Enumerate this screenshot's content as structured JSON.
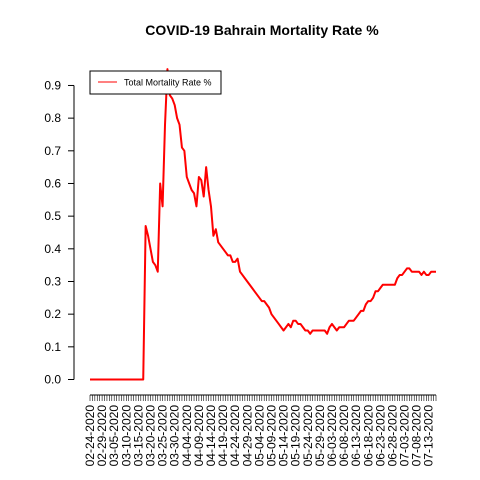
{
  "chart_data": {
    "type": "line",
    "title": "COVID-19 Bahrain Mortality Rate %",
    "xlabel": "",
    "ylabel": "",
    "ylim": [
      0,
      0.95
    ],
    "y_ticks": [
      "0.0",
      "0.1",
      "0.2",
      "0.3",
      "0.4",
      "0.5",
      "0.6",
      "0.7",
      "0.8",
      "0.9"
    ],
    "x_tick_labels": [
      "02-24-2020",
      "02-29-2020",
      "03-05-2020",
      "03-10-2020",
      "03-15-2020",
      "03-20-2020",
      "03-25-2020",
      "03-30-2020",
      "04-04-2020",
      "04-09-2020",
      "04-14-2020",
      "04-19-2020",
      "04-24-2020",
      "04-29-2020",
      "05-04-2020",
      "05-09-2020",
      "05-14-2020",
      "05-19-2020",
      "05-24-2020",
      "05-29-2020",
      "06-03-2020",
      "06-08-2020",
      "06-13-2020",
      "06-18-2020",
      "06-23-2020",
      "06-28-2020",
      "07-03-2020",
      "07-08-2020",
      "07-13-2020"
    ],
    "grid": false,
    "legend_position": "top-left",
    "series": [
      {
        "name": "Total Mortality Rate %",
        "color": "#ff0000",
        "start_date": "02-24-2020",
        "values": [
          0,
          0,
          0,
          0,
          0,
          0,
          0,
          0,
          0,
          0,
          0,
          0,
          0,
          0,
          0,
          0,
          0,
          0,
          0,
          0,
          0,
          0,
          0,
          0.47,
          0.44,
          0.4,
          0.36,
          0.35,
          0.33,
          0.6,
          0.53,
          0.78,
          0.95,
          0.87,
          0.86,
          0.84,
          0.8,
          0.78,
          0.71,
          0.7,
          0.62,
          0.6,
          0.58,
          0.57,
          0.53,
          0.62,
          0.61,
          0.56,
          0.65,
          0.58,
          0.53,
          0.44,
          0.46,
          0.42,
          0.41,
          0.4,
          0.39,
          0.38,
          0.38,
          0.36,
          0.36,
          0.37,
          0.33,
          0.32,
          0.31,
          0.3,
          0.29,
          0.28,
          0.27,
          0.26,
          0.25,
          0.24,
          0.24,
          0.23,
          0.22,
          0.2,
          0.19,
          0.18,
          0.17,
          0.16,
          0.15,
          0.16,
          0.17,
          0.16,
          0.18,
          0.18,
          0.17,
          0.17,
          0.16,
          0.15,
          0.15,
          0.14,
          0.15,
          0.15,
          0.15,
          0.15,
          0.15,
          0.15,
          0.14,
          0.16,
          0.17,
          0.16,
          0.15,
          0.16,
          0.16,
          0.16,
          0.17,
          0.18,
          0.18,
          0.18,
          0.19,
          0.2,
          0.21,
          0.21,
          0.23,
          0.24,
          0.24,
          0.25,
          0.27,
          0.27,
          0.28,
          0.29,
          0.29,
          0.29,
          0.29,
          0.29,
          0.29,
          0.31,
          0.32,
          0.32,
          0.33,
          0.34,
          0.34,
          0.33,
          0.33,
          0.33,
          0.33,
          0.32,
          0.33,
          0.32,
          0.32,
          0.33,
          0.33,
          0.33
        ]
      }
    ]
  }
}
